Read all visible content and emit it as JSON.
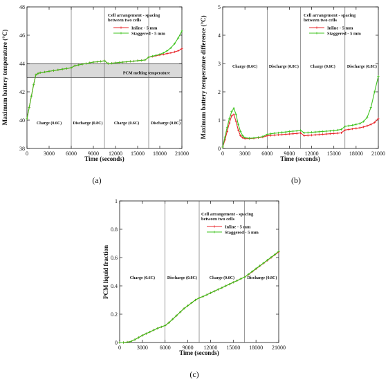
{
  "chart_data": [
    {
      "id": "a",
      "type": "line",
      "sublabel": "(a)",
      "xlabel": "Time (seconds)",
      "ylabel": "Maximum battery temperature (°C)",
      "xlim": [
        0,
        21000
      ],
      "ylim": [
        38,
        48
      ],
      "xticks": [
        0,
        3000,
        6000,
        9000,
        12000,
        15000,
        18000,
        21000
      ],
      "yticks": [
        38,
        40,
        42,
        44,
        46,
        48
      ],
      "legend_title": "Cell arrangement - spacing between two cells",
      "phase_lines": [
        6000,
        10500,
        16500
      ],
      "phase_labels": [
        {
          "text": "Charge (0.6C)",
          "x": 3000,
          "y": 39.7
        },
        {
          "text": "Discharge (0.8C)",
          "x": 8250,
          "y": 39.7
        },
        {
          "text": "Charge (0.6C)",
          "x": 13500,
          "y": 39.7
        },
        {
          "text": "Discharge (0.8C)",
          "x": 18800,
          "y": 39.7
        }
      ],
      "band": {
        "y0": 43.0,
        "y1": 44.0,
        "label": "PCM melting temperature"
      },
      "series": [
        {
          "name": "Inline - 5 mm",
          "color": "#e8262b",
          "x": [
            0,
            300,
            600,
            900,
            1200,
            1500,
            1800,
            2400,
            3000,
            3600,
            4200,
            4800,
            5400,
            6000,
            6500,
            7000,
            7500,
            8000,
            8500,
            9000,
            9500,
            10000,
            10500,
            11000,
            11500,
            12000,
            12500,
            13000,
            13500,
            14000,
            14500,
            15000,
            15500,
            16000,
            16500,
            17000,
            17500,
            18000,
            18500,
            19000,
            19500,
            20000,
            20500,
            21000
          ],
          "y": [
            40.1,
            40.9,
            41.7,
            42.5,
            43.2,
            43.3,
            43.35,
            43.4,
            43.45,
            43.5,
            43.55,
            43.6,
            43.65,
            43.7,
            43.85,
            43.9,
            43.95,
            44.0,
            44.05,
            44.1,
            44.12,
            44.15,
            44.2,
            44.0,
            44.02,
            44.05,
            44.07,
            44.1,
            44.12,
            44.15,
            44.17,
            44.2,
            44.22,
            44.25,
            44.45,
            44.5,
            44.55,
            44.6,
            44.65,
            44.7,
            44.75,
            44.82,
            44.9,
            45.05
          ]
        },
        {
          "name": "Staggered - 5 mm",
          "color": "#3ec31e",
          "x": [
            0,
            300,
            600,
            900,
            1200,
            1500,
            1800,
            2400,
            3000,
            3600,
            4200,
            4800,
            5400,
            6000,
            6500,
            7000,
            7500,
            8000,
            8500,
            9000,
            9500,
            10000,
            10500,
            11000,
            11500,
            12000,
            12500,
            13000,
            13500,
            14000,
            14500,
            15000,
            15500,
            16000,
            16500,
            17000,
            17500,
            18000,
            18500,
            19000,
            19500,
            20000,
            20500,
            21000
          ],
          "y": [
            40.1,
            40.9,
            41.7,
            42.5,
            43.2,
            43.3,
            43.35,
            43.4,
            43.45,
            43.5,
            43.55,
            43.6,
            43.65,
            43.7,
            43.85,
            43.9,
            43.95,
            44.0,
            44.05,
            44.1,
            44.12,
            44.15,
            44.2,
            44.0,
            44.02,
            44.05,
            44.07,
            44.1,
            44.12,
            44.15,
            44.17,
            44.2,
            44.22,
            44.25,
            44.45,
            44.52,
            44.58,
            44.65,
            44.75,
            44.9,
            45.1,
            45.4,
            45.8,
            46.3
          ]
        }
      ]
    },
    {
      "id": "b",
      "type": "line",
      "sublabel": "(b)",
      "xlabel": "Time (seconds)",
      "ylabel": "Maximum battery temperature difference (°C)",
      "xlim": [
        0,
        21000
      ],
      "ylim": [
        0,
        5
      ],
      "xticks": [
        0,
        3000,
        6000,
        9000,
        12000,
        15000,
        18000,
        21000
      ],
      "yticks": [
        0,
        1,
        2,
        3,
        4,
        5
      ],
      "legend_title": "Cell arrangement - spacing between two cells",
      "phase_lines": [
        6000,
        10500,
        16500
      ],
      "phase_labels": [
        {
          "text": "Charge (0.6C)",
          "x": 3000,
          "y": 2.85
        },
        {
          "text": "Discharge (0.8C)",
          "x": 8250,
          "y": 2.85
        },
        {
          "text": "Charge (0.6C)",
          "x": 13500,
          "y": 2.85
        },
        {
          "text": "Discharge (0.8C)",
          "x": 18800,
          "y": 2.85
        }
      ],
      "series": [
        {
          "name": "Inline - 5 mm",
          "color": "#e8262b",
          "x": [
            0,
            300,
            600,
            900,
            1200,
            1500,
            1800,
            2100,
            2400,
            2700,
            3000,
            3600,
            4200,
            4800,
            5400,
            6000,
            6500,
            7000,
            7500,
            8000,
            8500,
            9000,
            9500,
            10000,
            10500,
            11000,
            11500,
            12000,
            12500,
            13000,
            13500,
            14000,
            14500,
            15000,
            15500,
            16000,
            16500,
            17000,
            17500,
            18000,
            18500,
            19000,
            19500,
            20000,
            20500,
            21000
          ],
          "y": [
            0.05,
            0.3,
            0.6,
            0.9,
            1.15,
            1.2,
            0.95,
            0.65,
            0.45,
            0.38,
            0.35,
            0.35,
            0.36,
            0.38,
            0.4,
            0.45,
            0.46,
            0.47,
            0.48,
            0.49,
            0.5,
            0.51,
            0.52,
            0.53,
            0.55,
            0.45,
            0.46,
            0.47,
            0.48,
            0.49,
            0.5,
            0.51,
            0.52,
            0.53,
            0.54,
            0.55,
            0.65,
            0.67,
            0.69,
            0.71,
            0.73,
            0.76,
            0.8,
            0.85,
            0.92,
            1.05
          ]
        },
        {
          "name": "Staggered - 5 mm",
          "color": "#3ec31e",
          "x": [
            0,
            300,
            600,
            900,
            1200,
            1500,
            1800,
            2100,
            2400,
            2700,
            3000,
            3600,
            4200,
            4800,
            5400,
            6000,
            6500,
            7000,
            7500,
            8000,
            8500,
            9000,
            9500,
            10000,
            10500,
            11000,
            11500,
            12000,
            12500,
            13000,
            13500,
            14000,
            14500,
            15000,
            15500,
            16000,
            16500,
            17000,
            17500,
            18000,
            18500,
            19000,
            19500,
            20000,
            20500,
            21000
          ],
          "y": [
            0.05,
            0.4,
            0.75,
            1.05,
            1.3,
            1.42,
            1.2,
            0.85,
            0.6,
            0.45,
            0.38,
            0.36,
            0.37,
            0.39,
            0.42,
            0.5,
            0.52,
            0.54,
            0.55,
            0.57,
            0.58,
            0.6,
            0.61,
            0.62,
            0.64,
            0.55,
            0.56,
            0.57,
            0.58,
            0.59,
            0.6,
            0.61,
            0.62,
            0.63,
            0.65,
            0.67,
            0.78,
            0.8,
            0.82,
            0.85,
            0.88,
            0.95,
            1.1,
            1.45,
            2.0,
            2.55
          ]
        }
      ]
    },
    {
      "id": "c",
      "type": "line",
      "sublabel": "(c)",
      "xlabel": "Time (seconds)",
      "ylabel": "PCM liquid fraction",
      "xlim": [
        0,
        21000
      ],
      "ylim": [
        0,
        1
      ],
      "xticks": [
        0,
        3000,
        6000,
        9000,
        12000,
        15000,
        18000,
        21000
      ],
      "yticks": [
        0,
        0.2,
        0.4,
        0.6,
        0.8,
        1
      ],
      "legend_title": "Cell arrangement - spacing between two cells",
      "phase_lines": [
        6000,
        10500,
        16500
      ],
      "phase_labels": [
        {
          "text": "Charge (0.6C)",
          "x": 3000,
          "y": 0.45
        },
        {
          "text": "Discharge (0.8C)",
          "x": 8250,
          "y": 0.45
        },
        {
          "text": "Charge (0.6C)",
          "x": 13500,
          "y": 0.45
        },
        {
          "text": "Discharge (0.8C)",
          "x": 18800,
          "y": 0.45
        }
      ],
      "series": [
        {
          "name": "Inline - 5 mm",
          "color": "#e8262b",
          "x": [
            0,
            500,
            1000,
            1500,
            2000,
            2500,
            3000,
            3500,
            4000,
            4500,
            5000,
            5500,
            6000,
            6500,
            7000,
            7500,
            8000,
            8500,
            9000,
            9500,
            10000,
            10500,
            11000,
            11500,
            12000,
            12500,
            13000,
            13500,
            14000,
            14500,
            15000,
            15500,
            16000,
            16500,
            17000,
            17500,
            18000,
            18500,
            19000,
            19500,
            20000,
            20500,
            21000
          ],
          "y": [
            0,
            0,
            0.003,
            0.008,
            0.02,
            0.035,
            0.05,
            0.063,
            0.075,
            0.088,
            0.1,
            0.11,
            0.12,
            0.14,
            0.165,
            0.19,
            0.215,
            0.24,
            0.26,
            0.28,
            0.3,
            0.315,
            0.325,
            0.337,
            0.35,
            0.362,
            0.375,
            0.387,
            0.4,
            0.412,
            0.425,
            0.437,
            0.45,
            0.462,
            0.48,
            0.5,
            0.52,
            0.54,
            0.56,
            0.58,
            0.6,
            0.62,
            0.64
          ]
        },
        {
          "name": "Staggered - 5 mm",
          "color": "#3ec31e",
          "x": [
            0,
            500,
            1000,
            1500,
            2000,
            2500,
            3000,
            3500,
            4000,
            4500,
            5000,
            5500,
            6000,
            6500,
            7000,
            7500,
            8000,
            8500,
            9000,
            9500,
            10000,
            10500,
            11000,
            11500,
            12000,
            12500,
            13000,
            13500,
            14000,
            14500,
            15000,
            15500,
            16000,
            16500,
            17000,
            17500,
            18000,
            18500,
            19000,
            19500,
            20000,
            20500,
            21000
          ],
          "y": [
            0,
            0,
            0.003,
            0.008,
            0.02,
            0.035,
            0.05,
            0.063,
            0.075,
            0.088,
            0.1,
            0.11,
            0.12,
            0.14,
            0.165,
            0.19,
            0.215,
            0.24,
            0.26,
            0.28,
            0.3,
            0.315,
            0.325,
            0.337,
            0.35,
            0.362,
            0.375,
            0.387,
            0.4,
            0.412,
            0.425,
            0.437,
            0.45,
            0.462,
            0.482,
            0.502,
            0.522,
            0.542,
            0.562,
            0.582,
            0.602,
            0.622,
            0.645
          ]
        }
      ]
    }
  ]
}
